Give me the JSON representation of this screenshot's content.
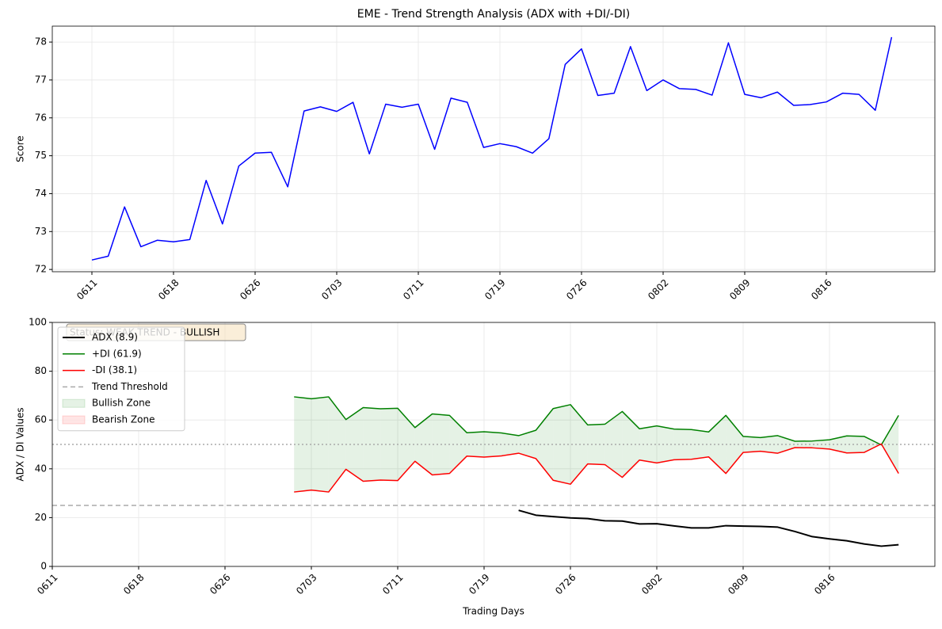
{
  "chart_data": [
    {
      "type": "line",
      "title": "EME - Trend Strength Analysis (ADX with +DI/-DI)",
      "y_label": "Score",
      "categories": [
        "0611",
        null,
        null,
        null,
        null,
        "0618",
        null,
        null,
        null,
        null,
        "0626",
        null,
        null,
        null,
        null,
        "0703",
        null,
        null,
        null,
        null,
        "0711",
        null,
        null,
        null,
        null,
        "0719",
        null,
        null,
        null,
        null,
        "0726",
        null,
        null,
        null,
        null,
        "0802",
        null,
        null,
        null,
        null,
        "0809",
        null,
        null,
        null,
        null,
        "0816",
        null,
        null,
        null,
        null
      ],
      "series": [
        {
          "color": "#0000ff",
          "values": [
            72.25,
            72.35,
            73.65,
            72.6,
            72.77,
            72.73,
            72.79,
            74.35,
            73.2,
            74.73,
            75.07,
            75.09,
            74.18,
            76.18,
            76.29,
            76.17,
            76.41,
            75.05,
            76.36,
            76.28,
            76.36,
            75.17,
            76.52,
            76.41,
            75.22,
            75.32,
            75.24,
            75.07,
            75.45,
            77.41,
            77.82,
            76.59,
            76.65,
            77.88,
            76.72,
            77.0,
            76.77,
            76.75,
            76.6,
            77.98,
            76.62,
            76.53,
            76.68,
            76.33,
            76.35,
            76.42,
            76.65,
            76.62,
            76.2,
            78.13
          ]
        }
      ],
      "ylim": [
        71.94,
        78.42
      ],
      "yticks": [
        72,
        73,
        74,
        75,
        76,
        77,
        78
      ],
      "grid": true
    },
    {
      "type": "line",
      "y_label": "ADX / DI Values",
      "x_label": "Trading Days",
      "categories": [
        "0611",
        null,
        null,
        null,
        null,
        "0618",
        null,
        null,
        null,
        null,
        "0626",
        null,
        null,
        null,
        null,
        "0703",
        null,
        null,
        null,
        null,
        "0711",
        null,
        null,
        null,
        null,
        "0719",
        null,
        null,
        null,
        null,
        "0726",
        null,
        null,
        null,
        null,
        "0802",
        null,
        null,
        null,
        null,
        "0809",
        null,
        null,
        null,
        null,
        "0816",
        null,
        null,
        null,
        null
      ],
      "series": [
        {
          "name": "ADX (8.9)",
          "color": "#000000",
          "width": 2,
          "values": [
            null,
            null,
            null,
            null,
            null,
            null,
            null,
            null,
            null,
            null,
            null,
            null,
            null,
            null,
            null,
            null,
            null,
            null,
            null,
            null,
            null,
            null,
            null,
            null,
            null,
            null,
            null,
            23.0,
            21.0,
            20.4,
            19.9,
            19.6,
            18.7,
            18.6,
            17.4,
            17.5,
            16.6,
            15.8,
            15.8,
            16.7,
            16.5,
            16.4,
            16.1,
            14.3,
            12.2,
            11.3,
            10.5,
            9.2,
            8.3,
            8.9
          ]
        },
        {
          "name": "+DI (61.9)",
          "color": "#008000",
          "width": 1.5,
          "values": [
            null,
            null,
            null,
            null,
            null,
            null,
            null,
            null,
            null,
            null,
            null,
            null,
            null,
            null,
            69.5,
            68.7,
            69.5,
            60.2,
            65.1,
            64.6,
            64.8,
            56.9,
            62.5,
            61.9,
            54.8,
            55.2,
            54.7,
            53.6,
            55.8,
            64.7,
            66.3,
            58.0,
            58.3,
            63.5,
            56.4,
            57.6,
            56.3,
            56.1,
            55.1,
            61.9,
            53.3,
            52.8,
            53.6,
            51.3,
            51.4,
            51.9,
            53.5,
            53.3,
            49.8,
            61.9
          ]
        },
        {
          "name": "-DI (38.1)",
          "color": "#ff0000",
          "width": 1.5,
          "values": [
            null,
            null,
            null,
            null,
            null,
            null,
            null,
            null,
            null,
            null,
            null,
            null,
            null,
            null,
            30.5,
            31.3,
            30.5,
            39.8,
            34.9,
            35.4,
            35.2,
            43.1,
            37.5,
            38.1,
            45.2,
            44.8,
            45.3,
            46.4,
            44.2,
            35.3,
            33.7,
            42.0,
            41.7,
            36.5,
            43.6,
            42.4,
            43.7,
            43.9,
            44.9,
            38.1,
            46.7,
            47.2,
            46.4,
            48.7,
            48.6,
            48.1,
            46.5,
            46.7,
            50.2,
            38.1
          ]
        }
      ],
      "reference_lines": [
        {
          "name": "Trend Threshold",
          "value": 25,
          "color": "#aaaaaa",
          "style": "dashed"
        },
        {
          "value": 50,
          "color": "#aaaaaa",
          "style": "dotted"
        }
      ],
      "zones": [
        {
          "name": "Bullish Zone",
          "color": "#008000"
        },
        {
          "name": "Bearish Zone",
          "color": "#ff0000"
        }
      ],
      "annotation": "Status: WEAK TREND - BULLISH",
      "ylim": [
        0,
        100
      ],
      "yticks": [
        0,
        20,
        40,
        60,
        80,
        100
      ],
      "grid": true,
      "legend": "upper left"
    }
  ]
}
